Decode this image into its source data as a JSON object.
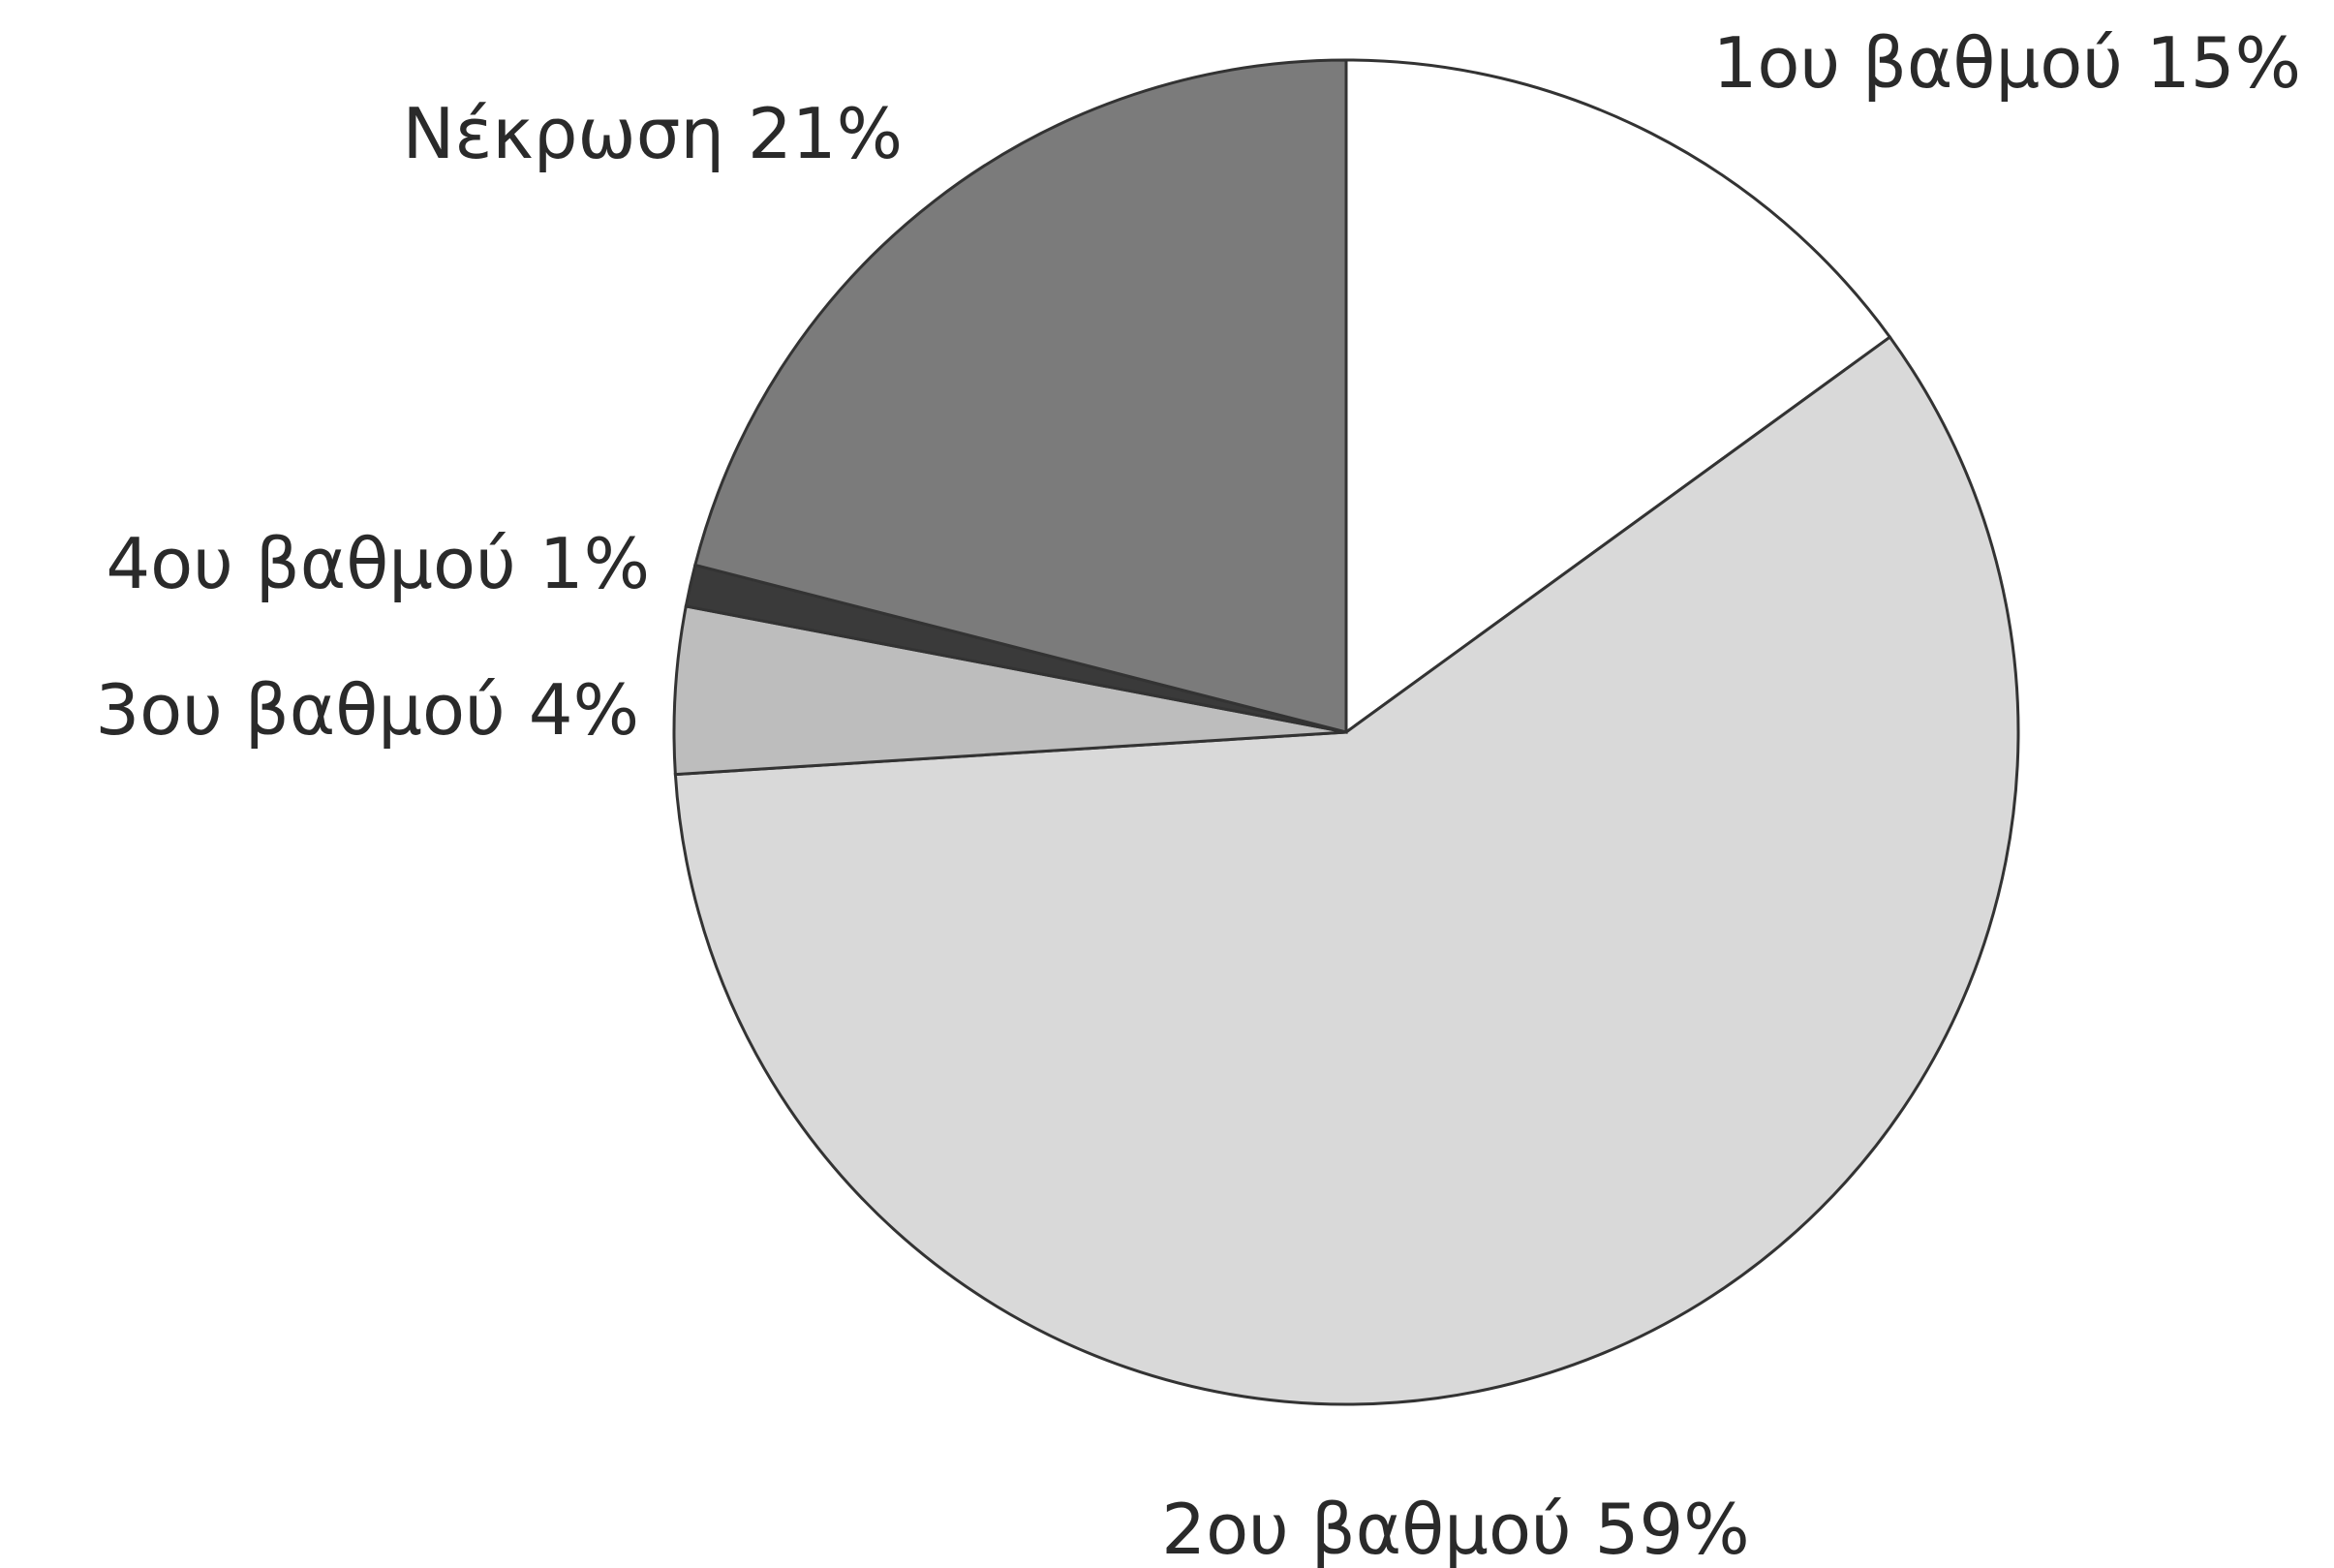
{
  "chart_data": {
    "type": "pie",
    "categories": [
      "1ου βαθμού",
      "2ου βαθμού",
      "3ου βαθμού",
      "4ου βαθμού",
      "Νέκρωση"
    ],
    "values": [
      15,
      59,
      4,
      1,
      21
    ],
    "value_labels": [
      "15%",
      "59%",
      "4%",
      "1%",
      "21%"
    ],
    "colors": [
      "#ffffff",
      "#d9d9d9",
      "#bdbdbd",
      "#3a3a3a",
      "#7b7b7b"
    ],
    "start_angle": 90,
    "direction": "clockwise"
  }
}
